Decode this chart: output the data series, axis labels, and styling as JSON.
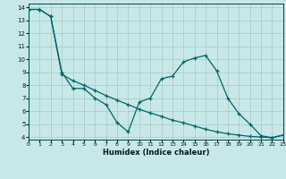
{
  "xlabel": "Humidex (Indice chaleur)",
  "background_color": "#c8e8e8",
  "grid_color": "#aacece",
  "line_color": "#006666",
  "line1_x": [
    0,
    1,
    2,
    3,
    4,
    5,
    6,
    7,
    8,
    9,
    10,
    11,
    12,
    13,
    14,
    15,
    16,
    17,
    18,
    19,
    20,
    21,
    22,
    23
  ],
  "line1_y": [
    13.85,
    13.85,
    13.3,
    9.0,
    7.75,
    7.75,
    7.0,
    6.5,
    5.1,
    4.4,
    6.7,
    7.0,
    8.5,
    8.7,
    9.8,
    10.1,
    10.3,
    9.1,
    7.0,
    5.8,
    5.0,
    4.1,
    3.95,
    4.15
  ],
  "line2_x": [
    0,
    1,
    2,
    3,
    4,
    5,
    6,
    7,
    8,
    9,
    10,
    11,
    12,
    13,
    14,
    15,
    16,
    17,
    18,
    19,
    20,
    21,
    22,
    23
  ],
  "line2_y": [
    13.85,
    13.85,
    13.3,
    8.85,
    8.35,
    8.0,
    7.6,
    7.2,
    6.85,
    6.5,
    6.15,
    5.85,
    5.6,
    5.3,
    5.1,
    4.85,
    4.6,
    4.4,
    4.25,
    4.15,
    4.05,
    4.0,
    3.95,
    4.15
  ],
  "xlim": [
    0,
    23
  ],
  "ylim": [
    3.8,
    14.3
  ],
  "yticks": [
    4,
    5,
    6,
    7,
    8,
    9,
    10,
    11,
    12,
    13,
    14
  ],
  "xticks": [
    0,
    1,
    2,
    3,
    4,
    5,
    6,
    7,
    8,
    9,
    10,
    11,
    12,
    13,
    14,
    15,
    16,
    17,
    18,
    19,
    20,
    21,
    22,
    23
  ]
}
